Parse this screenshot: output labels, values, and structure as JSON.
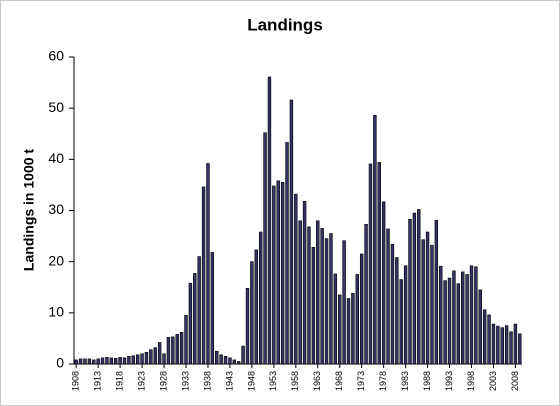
{
  "chart_data": {
    "type": "bar",
    "title": "Landings",
    "y_label": "Landings in 1000 t",
    "categories": [
      "1908",
      null,
      null,
      null,
      null,
      "1913",
      null,
      null,
      null,
      null,
      "1918",
      null,
      null,
      null,
      null,
      "1923",
      null,
      null,
      null,
      null,
      "1928",
      null,
      null,
      null,
      null,
      "1933",
      null,
      null,
      null,
      null,
      "1938",
      null,
      null,
      null,
      null,
      "1943",
      null,
      null,
      null,
      null,
      "1948",
      null,
      null,
      null,
      null,
      "1953",
      null,
      null,
      null,
      null,
      "1958",
      null,
      null,
      null,
      null,
      "1963",
      null,
      null,
      null,
      null,
      "1968",
      null,
      null,
      null,
      null,
      "1973",
      null,
      null,
      null,
      null,
      "1978",
      null,
      null,
      null,
      null,
      "1983",
      null,
      null,
      null,
      null,
      "1988",
      null,
      null,
      null,
      null,
      "1993",
      null,
      null,
      null,
      null,
      "1998",
      null,
      null,
      null,
      null,
      "2003",
      null,
      null,
      null,
      null,
      "2008",
      null
    ],
    "values": [
      0.8,
      1,
      1,
      1,
      0.8,
      1,
      1.2,
      1.3,
      1.2,
      1.1,
      1.3,
      1.2,
      1.5,
      1.6,
      1.8,
      2,
      2.3,
      2.8,
      3.2,
      4.2,
      2,
      5.2,
      5.3,
      5.8,
      6.2,
      9.5,
      15.8,
      17.7,
      21,
      34.6,
      39.2,
      21.8,
      2.5,
      1.8,
      1.5,
      1.2,
      0.8,
      0.5,
      3.5,
      14.8,
      20,
      22.3,
      25.8,
      45.2,
      56.1,
      34.8,
      35.8,
      35.5,
      43.3,
      51.6,
      33.2,
      28,
      31.8,
      26.8,
      22.8,
      28,
      26.5,
      24.5,
      25.5,
      17.6,
      13.5,
      24.1,
      12.8,
      13.8,
      17.5,
      21.5,
      27.3,
      39.1,
      48.6,
      39.4,
      31.7,
      26.4,
      23.4,
      20.8,
      16.5,
      19.2,
      28.3,
      29.5,
      30.2,
      24.3,
      25.8,
      23.2,
      28.1,
      19.1,
      16.3,
      16.8,
      18.2,
      15.7,
      18,
      17.5,
      19.2,
      19,
      14.5,
      10.6,
      9.6,
      7.8,
      7.4,
      7.1,
      7.5,
      6.3,
      7.8,
      5.9
    ],
    "color": "#333366",
    "ylim": [
      0,
      60
    ],
    "yticks": [
      0,
      10,
      20,
      30,
      40,
      50,
      60
    ],
    "grid": false
  }
}
